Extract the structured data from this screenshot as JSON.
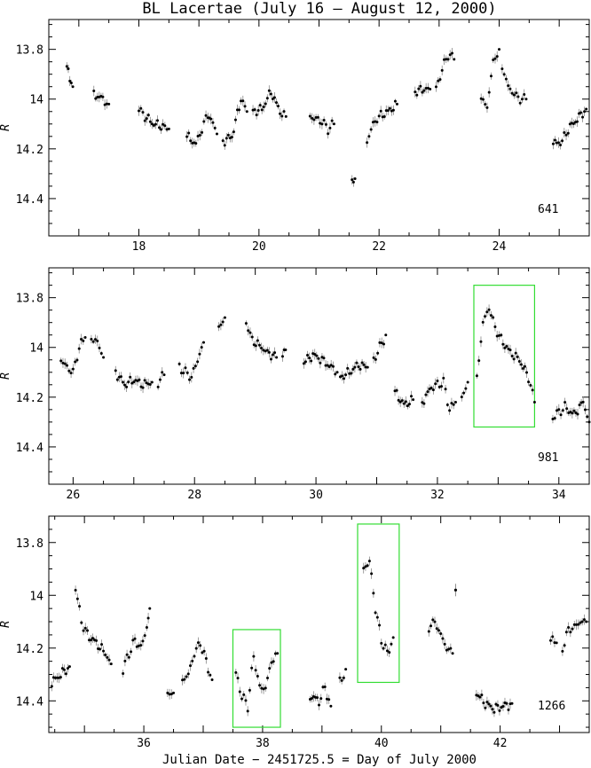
{
  "title": "BL Lacertae    (July 16 – August 12, 2000)",
  "xlabel": "Julian Date − 2451725.5 = Day of July 2000",
  "ylabel": "R",
  "colors": {
    "points": "#000000",
    "errorbars": "#888888",
    "highlight_boxes": "#33dd33",
    "frame": "#000000"
  },
  "chart_data": [
    {
      "type": "scatter",
      "panel": 1,
      "count_label": "641",
      "xlim": [
        16.5,
        25.5
      ],
      "ylim": [
        14.55,
        13.68
      ],
      "y_inverted": true,
      "xticks": [
        18,
        20,
        22,
        24
      ],
      "yticks": [
        13.8,
        14.0,
        14.2,
        14.4
      ],
      "segments": [
        {
          "x": [
            16.8,
            16.85,
            16.9
          ],
          "y": [
            13.86,
            13.93,
            13.95
          ]
        },
        {
          "x": [
            17.25,
            17.4,
            17.5
          ],
          "y": [
            13.98,
            14.0,
            14.02
          ]
        },
        {
          "x": [
            18.0,
            18.1,
            18.25,
            18.4,
            18.5
          ],
          "y": [
            14.04,
            14.07,
            14.1,
            14.11,
            14.12
          ]
        },
        {
          "x": [
            18.8,
            18.95,
            19.05,
            19.15,
            19.2,
            19.3
          ],
          "y": [
            14.15,
            14.18,
            14.12,
            14.06,
            14.08,
            14.14
          ]
        },
        {
          "x": [
            19.4,
            19.55,
            19.7,
            19.8
          ],
          "y": [
            14.17,
            14.15,
            14.0,
            14.05
          ]
        },
        {
          "x": [
            19.9,
            20.05,
            20.2,
            20.35,
            20.45
          ],
          "y": [
            14.05,
            14.04,
            13.97,
            14.05,
            14.07
          ]
        },
        {
          "x": [
            20.85,
            20.95,
            21.05,
            21.15,
            21.25
          ],
          "y": [
            14.07,
            14.08,
            14.09,
            14.12,
            14.1
          ]
        },
        {
          "x": [
            21.55,
            21.6
          ],
          "y": [
            14.32,
            14.32
          ]
        },
        {
          "x": [
            21.8,
            21.9,
            22.0,
            22.15,
            22.3
          ],
          "y": [
            14.17,
            14.1,
            14.07,
            14.05,
            14.02
          ]
        },
        {
          "x": [
            22.6,
            22.75,
            22.85
          ],
          "y": [
            13.97,
            13.96,
            13.96
          ]
        },
        {
          "x": [
            22.95,
            23.05,
            23.15,
            23.25
          ],
          "y": [
            13.96,
            13.88,
            13.82,
            13.84
          ]
        },
        {
          "x": [
            23.7,
            23.8,
            23.9,
            24.0
          ],
          "y": [
            14.0,
            14.03,
            13.85,
            13.8
          ]
        },
        {
          "x": [
            24.05,
            24.15,
            24.25,
            24.35,
            24.45
          ],
          "y": [
            13.87,
            13.95,
            13.98,
            14.0,
            14.0
          ]
        },
        {
          "x": [
            24.9,
            25.05,
            25.15,
            25.3,
            25.45
          ],
          "y": [
            14.18,
            14.17,
            14.12,
            14.08,
            14.04
          ]
        }
      ]
    },
    {
      "type": "scatter",
      "panel": 2,
      "count_label": "981",
      "xlim": [
        25.6,
        34.5
      ],
      "ylim": [
        14.55,
        13.68
      ],
      "y_inverted": true,
      "xticks": [
        26,
        28,
        30,
        32,
        34
      ],
      "yticks": [
        13.8,
        14.0,
        14.2,
        14.4
      ],
      "highlight_boxes": [
        {
          "x": [
            32.6,
            33.6
          ],
          "y": [
            13.75,
            14.32
          ]
        }
      ],
      "segments": [
        {
          "x": [
            25.8,
            25.9,
            26.0,
            26.1,
            26.2
          ],
          "y": [
            14.05,
            14.08,
            14.1,
            14.0,
            13.96
          ]
        },
        {
          "x": [
            26.3,
            26.4,
            26.5
          ],
          "y": [
            13.96,
            13.98,
            14.04
          ]
        },
        {
          "x": [
            26.7,
            26.85,
            27.0,
            27.15,
            27.3
          ],
          "y": [
            14.1,
            14.15,
            14.13,
            14.15,
            14.14
          ]
        },
        {
          "x": [
            27.4,
            27.5
          ],
          "y": [
            14.14,
            14.11
          ]
        },
        {
          "x": [
            27.75,
            27.85,
            27.95,
            28.05,
            28.15
          ],
          "y": [
            14.08,
            14.1,
            14.12,
            14.05,
            13.98
          ]
        },
        {
          "x": [
            28.4,
            28.5
          ],
          "y": [
            13.92,
            13.88
          ]
        },
        {
          "x": [
            28.85,
            28.95,
            29.1,
            29.2,
            29.35
          ],
          "y": [
            13.9,
            13.97,
            14.0,
            14.02,
            14.04
          ]
        },
        {
          "x": [
            29.45,
            29.5
          ],
          "y": [
            14.04,
            14.01
          ]
        },
        {
          "x": [
            29.8,
            29.95,
            30.1,
            30.25,
            30.35
          ],
          "y": [
            14.06,
            14.03,
            14.05,
            14.08,
            14.1
          ]
        },
        {
          "x": [
            30.4,
            30.55,
            30.7,
            30.85
          ],
          "y": [
            14.12,
            14.1,
            14.07,
            14.08
          ]
        },
        {
          "x": [
            30.95,
            31.05,
            31.15
          ],
          "y": [
            14.05,
            14.0,
            13.95
          ]
        },
        {
          "x": [
            31.3,
            31.45,
            31.6
          ],
          "y": [
            14.18,
            14.23,
            14.21
          ]
        },
        {
          "x": [
            31.75,
            31.9,
            32.0,
            32.1,
            32.2,
            32.3
          ],
          "y": [
            14.22,
            14.16,
            14.15,
            14.14,
            14.25,
            14.22
          ]
        },
        {
          "x": [
            32.4,
            32.5
          ],
          "y": [
            14.2,
            14.14
          ]
        },
        {
          "x": [
            32.65,
            32.75,
            32.85,
            32.95,
            33.05,
            33.2,
            33.35,
            33.5,
            33.6
          ],
          "y": [
            14.12,
            13.9,
            13.84,
            13.92,
            13.97,
            14.02,
            14.05,
            14.12,
            14.22
          ]
        },
        {
          "x": [
            33.9,
            34.1,
            34.25,
            34.4,
            34.5
          ],
          "y": [
            14.28,
            14.24,
            14.27,
            14.22,
            14.3
          ]
        }
      ]
    },
    {
      "type": "scatter",
      "panel": 3,
      "count_label": "1266",
      "xlim": [
        34.4,
        43.5
      ],
      "ylim": [
        14.52,
        13.7
      ],
      "y_inverted": true,
      "xticks": [
        36,
        38,
        40,
        42
      ],
      "yticks": [
        13.8,
        14.0,
        14.2,
        14.4
      ],
      "highlight_boxes": [
        {
          "x": [
            37.5,
            38.3
          ],
          "y": [
            14.13,
            14.5
          ]
        },
        {
          "x": [
            39.6,
            40.3
          ],
          "y": [
            13.73,
            14.33
          ]
        }
      ],
      "segments": [
        {
          "x": [
            34.45,
            34.6,
            34.75
          ],
          "y": [
            14.33,
            14.3,
            14.27
          ]
        },
        {
          "x": [
            34.85,
            34.95,
            35.05,
            35.2,
            35.35,
            35.45
          ],
          "y": [
            13.97,
            14.1,
            14.15,
            14.18,
            14.22,
            14.26
          ]
        },
        {
          "x": [
            35.65,
            35.75,
            35.85,
            35.95,
            36.05,
            36.1
          ],
          "y": [
            14.28,
            14.22,
            14.17,
            14.2,
            14.12,
            14.05
          ]
        },
        {
          "x": [
            36.4,
            36.5
          ],
          "y": [
            14.37,
            14.37
          ]
        },
        {
          "x": [
            36.65,
            36.75,
            36.85,
            36.95,
            37.05,
            37.15
          ],
          "y": [
            14.32,
            14.3,
            14.22,
            14.18,
            14.25,
            14.32
          ]
        },
        {
          "x": [
            37.55,
            37.65,
            37.75,
            37.85,
            37.95,
            38.05,
            38.15,
            38.25
          ],
          "y": [
            14.3,
            14.38,
            14.42,
            14.23,
            14.35,
            14.35,
            14.25,
            14.22
          ]
        },
        {
          "x": [
            38.8,
            38.95,
            39.05,
            39.15
          ],
          "y": [
            14.38,
            14.4,
            14.35,
            14.42
          ]
        },
        {
          "x": [
            39.3,
            39.4
          ],
          "y": [
            14.33,
            14.28
          ]
        },
        {
          "x": [
            39.7,
            39.8,
            39.9,
            40.0,
            40.1,
            40.2
          ],
          "y": [
            13.9,
            13.87,
            14.05,
            14.17,
            14.22,
            14.16
          ]
        },
        {
          "x": [
            40.8,
            40.9,
            41.0,
            41.1,
            41.2
          ],
          "y": [
            14.12,
            14.1,
            14.15,
            14.2,
            14.22
          ]
        },
        {
          "x": [
            41.25
          ],
          "y": [
            13.98
          ]
        },
        {
          "x": [
            41.6,
            41.75,
            41.9,
            42.05,
            42.2
          ],
          "y": [
            14.37,
            14.41,
            14.43,
            14.42,
            14.41
          ]
        },
        {
          "x": [
            42.85,
            42.95
          ],
          "y": [
            14.17,
            14.18
          ]
        },
        {
          "x": [
            43.05,
            43.15,
            43.25,
            43.35,
            43.45
          ],
          "y": [
            14.2,
            14.13,
            14.12,
            14.1,
            14.1
          ]
        }
      ]
    }
  ]
}
